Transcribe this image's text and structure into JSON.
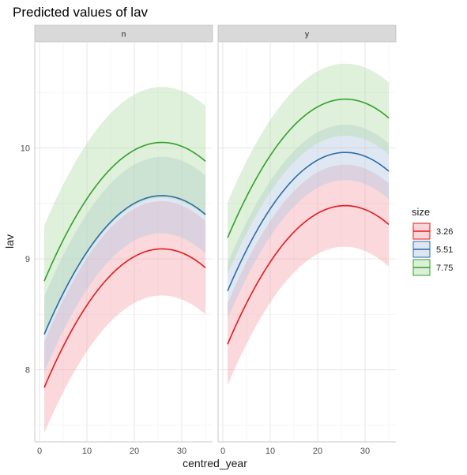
{
  "chart_data": {
    "type": "line",
    "title": "Predicted values of lav",
    "xlabel": "centred_year",
    "ylabel": "lav",
    "facets": [
      "n",
      "y"
    ],
    "x_domain": [
      1,
      35
    ],
    "xlim": [
      -1,
      36.5
    ],
    "ylim": [
      7.35,
      10.95
    ],
    "xticks": [
      0,
      10,
      20,
      30
    ],
    "yticks": [
      8,
      9,
      10
    ],
    "grid": true,
    "legend": {
      "title": "size",
      "position": "right",
      "entries": [
        "3.26",
        "5.51",
        "7.75"
      ]
    },
    "series": [
      {
        "facet": "n",
        "size": "3.26",
        "color": "#e31a1c",
        "fill": "#f4a3ac",
        "line": [
          {
            "x": 1,
            "y": 7.84
          },
          {
            "x": 26,
            "y": 9.09
          },
          {
            "x": 35,
            "y": 8.92
          }
        ],
        "lower": [
          {
            "x": 1,
            "y": 7.43
          },
          {
            "x": 26,
            "y": 8.67
          },
          {
            "x": 35,
            "y": 8.5
          }
        ],
        "upper": [
          {
            "x": 1,
            "y": 8.25
          },
          {
            "x": 26,
            "y": 9.52
          },
          {
            "x": 35,
            "y": 9.34
          }
        ]
      },
      {
        "facet": "n",
        "size": "5.51",
        "color": "#2b6ca8",
        "fill": "#b3c8e0",
        "line": [
          {
            "x": 1,
            "y": 8.32
          },
          {
            "x": 26,
            "y": 9.57
          },
          {
            "x": 35,
            "y": 9.4
          }
        ],
        "lower": [
          {
            "x": 1,
            "y": 7.98
          },
          {
            "x": 26,
            "y": 9.23
          },
          {
            "x": 35,
            "y": 9.05
          }
        ],
        "upper": [
          {
            "x": 1,
            "y": 8.66
          },
          {
            "x": 26,
            "y": 9.92
          },
          {
            "x": 35,
            "y": 9.75
          }
        ]
      },
      {
        "facet": "n",
        "size": "7.75",
        "color": "#33a02c",
        "fill": "#b2dca9",
        "line": [
          {
            "x": 1,
            "y": 8.8
          },
          {
            "x": 26,
            "y": 10.05
          },
          {
            "x": 35,
            "y": 9.88
          }
        ],
        "lower": [
          {
            "x": 1,
            "y": 8.3
          },
          {
            "x": 26,
            "y": 9.55
          },
          {
            "x": 35,
            "y": 9.38
          }
        ],
        "upper": [
          {
            "x": 1,
            "y": 9.3
          },
          {
            "x": 26,
            "y": 10.55
          },
          {
            "x": 35,
            "y": 10.38
          }
        ]
      },
      {
        "facet": "y",
        "size": "3.26",
        "color": "#e31a1c",
        "fill": "#f4a3ac",
        "line": [
          {
            "x": 1,
            "y": 8.23
          },
          {
            "x": 26,
            "y": 9.48
          },
          {
            "x": 35,
            "y": 9.31
          }
        ],
        "lower": [
          {
            "x": 1,
            "y": 7.86
          },
          {
            "x": 26,
            "y": 9.11
          },
          {
            "x": 35,
            "y": 8.93
          }
        ],
        "upper": [
          {
            "x": 1,
            "y": 8.6
          },
          {
            "x": 26,
            "y": 9.85
          },
          {
            "x": 35,
            "y": 9.68
          }
        ]
      },
      {
        "facet": "y",
        "size": "5.51",
        "color": "#2b6ca8",
        "fill": "#b3c8e0",
        "line": [
          {
            "x": 1,
            "y": 8.71
          },
          {
            "x": 26,
            "y": 9.96
          },
          {
            "x": 35,
            "y": 9.79
          }
        ],
        "lower": [
          {
            "x": 1,
            "y": 8.46
          },
          {
            "x": 26,
            "y": 9.71
          },
          {
            "x": 35,
            "y": 9.54
          }
        ],
        "upper": [
          {
            "x": 1,
            "y": 8.96
          },
          {
            "x": 26,
            "y": 10.21
          },
          {
            "x": 35,
            "y": 10.04
          }
        ]
      },
      {
        "facet": "y",
        "size": "7.75",
        "color": "#33a02c",
        "fill": "#b2dca9",
        "line": [
          {
            "x": 1,
            "y": 9.19
          },
          {
            "x": 26,
            "y": 10.44
          },
          {
            "x": 35,
            "y": 10.27
          }
        ],
        "lower": [
          {
            "x": 1,
            "y": 8.86
          },
          {
            "x": 26,
            "y": 10.11
          },
          {
            "x": 35,
            "y": 9.94
          }
        ],
        "upper": [
          {
            "x": 1,
            "y": 9.51
          },
          {
            "x": 26,
            "y": 10.76
          },
          {
            "x": 35,
            "y": 10.59
          }
        ]
      }
    ]
  }
}
